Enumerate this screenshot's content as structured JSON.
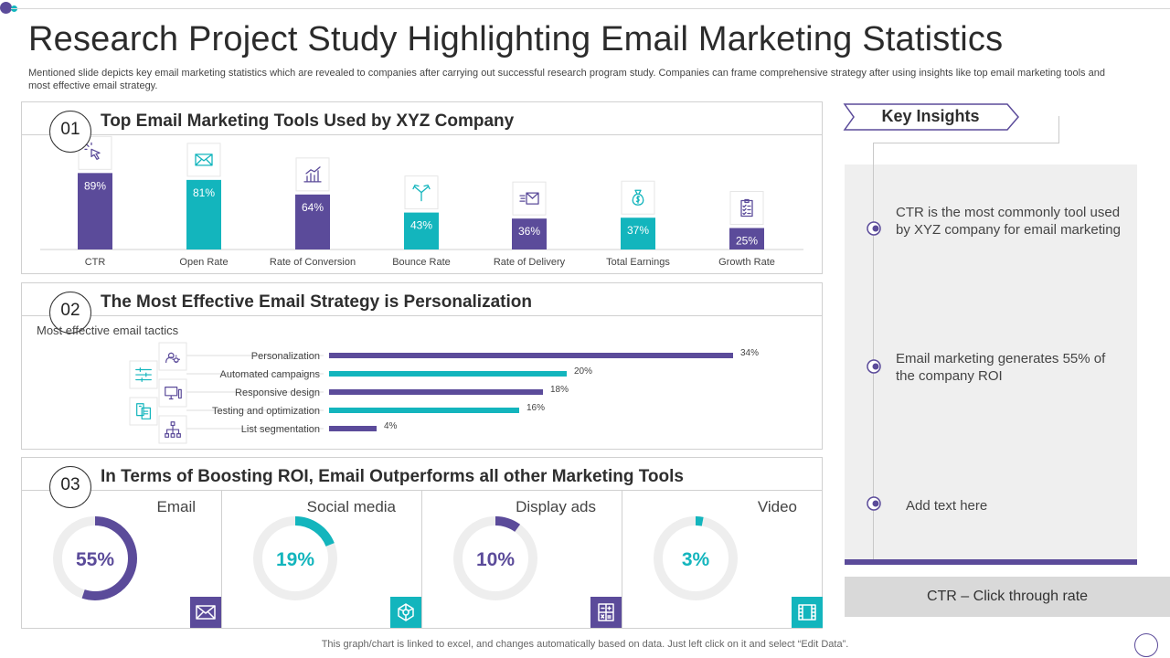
{
  "page": {
    "title": "Research Project Study Highlighting Email Marketing Statistics",
    "subtitle": "Mentioned slide depicts key email marketing statistics which are revealed to companies after carrying out successful research program study. Companies can frame comprehensive strategy after using insights like top email marketing tools and most effective email strategy.",
    "footer": "This graph/chart is linked to excel,  and changes automatically based on data. Just left click on it and select “Edit Data”."
  },
  "colors": {
    "purple": "#5b4b9a",
    "teal": "#13b5bd",
    "ring_bg": "#eeeeee"
  },
  "sections": {
    "s1": {
      "num": "01",
      "title": "Top Email Marketing Tools Used by XYZ Company"
    },
    "s2": {
      "num": "02",
      "title": "The Most Effective Email Strategy is Personalization",
      "sub_label": "Most effective email tactics"
    },
    "s3": {
      "num": "03",
      "title": "In Terms of Boosting ROI, Email Outperforms all other Marketing Tools"
    }
  },
  "chart_data": [
    {
      "type": "bar",
      "categories": [
        "CTR",
        "Open Rate",
        "Rate of Conversion",
        "Bounce Rate",
        "Rate of Delivery",
        "Total Earnings",
        "Growth Rate"
      ],
      "values": [
        89,
        81,
        64,
        43,
        36,
        37,
        25
      ],
      "data_labels": [
        "89%",
        "81%",
        "64%",
        "43%",
        "36%",
        "37%",
        "25%"
      ],
      "bar_colors": [
        "#5b4b9a",
        "#13b5bd",
        "#5b4b9a",
        "#13b5bd",
        "#5b4b9a",
        "#13b5bd",
        "#5b4b9a"
      ],
      "icons": [
        "click-icon",
        "envelope-icon",
        "growth-chart-icon",
        "split-arrows-icon",
        "send-mail-icon",
        "money-bag-icon",
        "clipboard-icon"
      ],
      "ylim": [
        0,
        100
      ]
    },
    {
      "type": "bar",
      "orientation": "horizontal",
      "categories": [
        "Personalization",
        "Automated campaigns",
        "Responsive design",
        "Testing and optimization",
        "List segmentation"
      ],
      "values": [
        34,
        20,
        18,
        16,
        4
      ],
      "data_labels": [
        "34%",
        "20%",
        "18%",
        "16%",
        "4%"
      ],
      "bar_colors": [
        "#5b4b9a",
        "#13b5bd",
        "#5b4b9a",
        "#13b5bd",
        "#5b4b9a"
      ],
      "icons": [
        "user-gear-icon",
        "sliders-icon",
        "monitor-icon",
        "devices-icon",
        "hierarchy-icon"
      ],
      "xlim": [
        0,
        40
      ]
    },
    {
      "type": "pie",
      "style": "donut",
      "categories": [
        "Email",
        "Social media",
        "Display ads",
        "Video"
      ],
      "values": [
        55,
        19,
        10,
        3
      ],
      "data_labels": [
        "55%",
        "19%",
        "10%",
        "3%"
      ],
      "colors": [
        "#5b4b9a",
        "#13b5bd",
        "#5b4b9a",
        "#13b5bd"
      ],
      "icons": [
        "envelope-icon",
        "network-icon",
        "calculator-icon",
        "film-icon"
      ]
    }
  ],
  "insights": {
    "title": "Key Insights",
    "items": [
      "CTR is the most commonly tool used by XYZ company for email marketing",
      "Email marketing generates 55% of the company ROI",
      "Add text here"
    ],
    "footnote": "CTR – Click through  rate"
  }
}
